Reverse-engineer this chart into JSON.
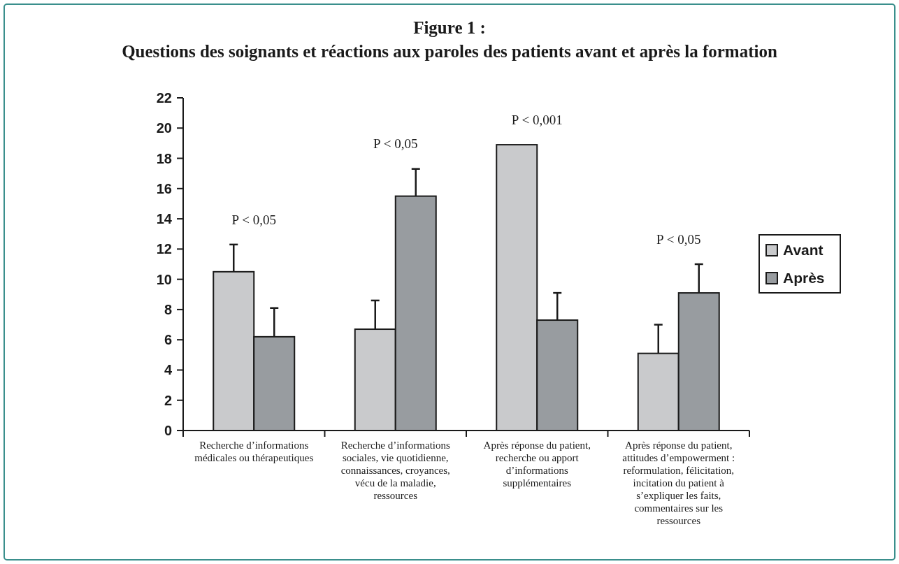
{
  "chart_data": {
    "type": "bar",
    "title": "Figure 1 :",
    "subtitle": "Questions des soignants et réactions aux paroles des patients avant et après la formation",
    "categories": [
      "Recherche d’informations médicales ou thérapeutiques",
      "Recherche d’informations sociales, vie quotidienne, connaissances, croyances, vécu de la maladie, ressources",
      "Après réponse du patient, recherche ou apport d’informations supplémentaires",
      "Après réponse du patient, attitudes d’empowerment : reformulation, félicitation, incitation du patient à s’expliquer les faits, commentaires sur les ressources"
    ],
    "series": [
      {
        "name": "Avant",
        "color": "#c9cacc",
        "values": [
          10.5,
          6.7,
          18.9,
          5.1
        ],
        "errors": [
          [
            10.5,
            12.3
          ],
          [
            6.7,
            8.6
          ],
          null,
          [
            5.1,
            7
          ]
        ]
      },
      {
        "name": "Après",
        "color": "#989ca0",
        "values": [
          6.2,
          15.5,
          7.3,
          9.1
        ],
        "errors": [
          [
            6.2,
            8.1
          ],
          [
            15.5,
            17.3
          ],
          [
            7.3,
            9.1
          ],
          [
            9.1,
            11
          ]
        ]
      }
    ],
    "ylim": [
      0,
      22
    ],
    "yticks": [
      0,
      2,
      4,
      6,
      8,
      10,
      12,
      14,
      16,
      18,
      20,
      22
    ],
    "grid": false,
    "legend": "right",
    "annotations": [
      "P < 0,05",
      "P < 0,05",
      "P < 0,001",
      "P < 0,05"
    ]
  }
}
